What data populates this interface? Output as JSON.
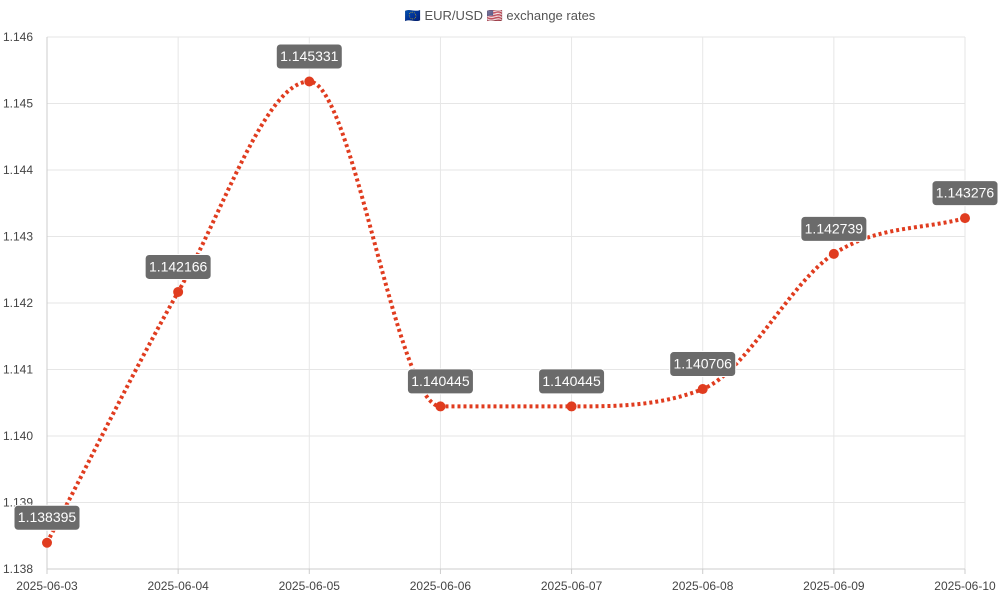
{
  "chart_data": {
    "type": "line",
    "title": "🇪🇺 EUR/USD 🇺🇸 exchange rates",
    "xlabel": "",
    "ylabel": "",
    "categories": [
      "2025-06-03",
      "2025-06-04",
      "2025-06-05",
      "2025-06-06",
      "2025-06-07",
      "2025-06-08",
      "2025-06-09",
      "2025-06-10"
    ],
    "series": [
      {
        "values": [
          1.138395,
          1.142166,
          1.145331,
          1.140445,
          1.140445,
          1.140706,
          1.142739,
          1.143276
        ],
        "color": "#e03c1f",
        "line_style": "dotted",
        "smooth": true,
        "data_labels": [
          "1.138395",
          "1.142166",
          "1.145331",
          "1.140445",
          "1.140445",
          "1.140706",
          "1.142739",
          "1.143276"
        ]
      }
    ],
    "ylim": [
      1.138,
      1.146
    ],
    "yticks": [
      1.138,
      1.139,
      1.14,
      1.141,
      1.142,
      1.143,
      1.144,
      1.145,
      1.146
    ],
    "ytick_labels": [
      "1.138",
      "1.139",
      "1.140",
      "1.141",
      "1.142",
      "1.143",
      "1.144",
      "1.145",
      "1.146"
    ],
    "grid": true,
    "legend": "none",
    "label_background": "#6b6b6b",
    "label_text_color": "#ffffff",
    "grid_color": "#e6e6e6"
  }
}
